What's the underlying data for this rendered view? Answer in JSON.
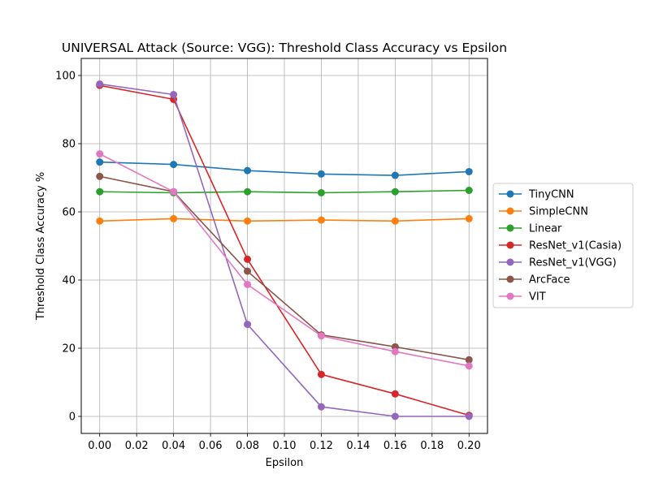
{
  "chart_data": {
    "type": "line",
    "title": "UNIVERSAL Attack (Source: VGG): Threshold Class Accuracy vs Epsilon",
    "xlabel": "Epsilon",
    "ylabel": "Threshold Class Accuracy %",
    "x": [
      0.0,
      0.04,
      0.08,
      0.12,
      0.16,
      0.2
    ],
    "xticks": [
      "0.00",
      "0.02",
      "0.04",
      "0.06",
      "0.08",
      "0.10",
      "0.12",
      "0.14",
      "0.16",
      "0.18",
      "0.20"
    ],
    "yticks": [
      "0",
      "20",
      "40",
      "60",
      "80",
      "100"
    ],
    "xlim": [
      -0.01,
      0.21
    ],
    "ylim": [
      -5,
      105
    ],
    "grid": true,
    "legend_position": "right",
    "series": [
      {
        "name": "TinyCNN",
        "color": "#1f77b4",
        "values": [
          74.6,
          73.9,
          72.1,
          71.1,
          70.7,
          71.8
        ]
      },
      {
        "name": "SimpleCNN",
        "color": "#ff7f0e",
        "values": [
          57.3,
          58.0,
          57.3,
          57.6,
          57.3,
          58.0
        ]
      },
      {
        "name": "Linear",
        "color": "#2ca02c",
        "values": [
          65.9,
          65.6,
          65.9,
          65.6,
          65.9,
          66.3
        ]
      },
      {
        "name": "ResNet_v1(Casia)",
        "color": "#d62728",
        "values": [
          97.1,
          93.0,
          46.1,
          12.3,
          6.6,
          0.3
        ]
      },
      {
        "name": "ResNet_v1(VGG)",
        "color": "#9467bd",
        "values": [
          97.5,
          94.4,
          27.0,
          2.8,
          0.0,
          0.0
        ]
      },
      {
        "name": "ArcFace",
        "color": "#8c564b",
        "values": [
          70.4,
          65.9,
          42.6,
          23.9,
          20.4,
          16.6
        ]
      },
      {
        "name": "VIT",
        "color": "#e377c2",
        "values": [
          77.0,
          65.9,
          38.7,
          23.6,
          19.0,
          14.8
        ]
      }
    ]
  }
}
